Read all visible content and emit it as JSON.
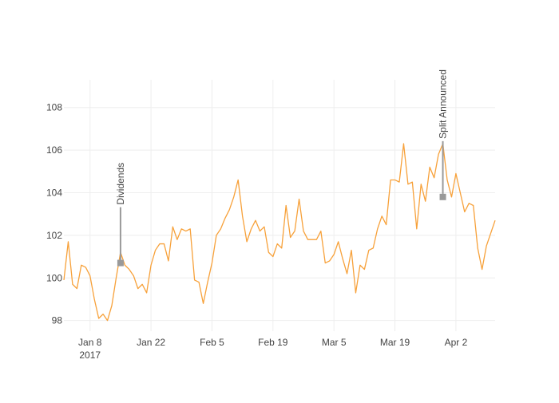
{
  "chart_data": {
    "type": "line",
    "title": "",
    "xlabel": "",
    "ylabel": "",
    "ylim": [
      97.5,
      109.3
    ],
    "xlim": [
      "2017-01-03",
      "2017-04-12"
    ],
    "grid": true,
    "y_ticks": [
      98,
      100,
      102,
      104,
      106,
      108
    ],
    "x_ticks": [
      {
        "date": "2017-01-09",
        "label": "Jan 8",
        "sublabel": "2017"
      },
      {
        "date": "2017-01-23",
        "label": "Jan 22",
        "sublabel": ""
      },
      {
        "date": "2017-02-06",
        "label": "Feb 5",
        "sublabel": ""
      },
      {
        "date": "2017-02-20",
        "label": "Feb 19",
        "sublabel": ""
      },
      {
        "date": "2017-03-06",
        "label": "Mar 5",
        "sublabel": ""
      },
      {
        "date": "2017-03-20",
        "label": "Mar 19",
        "sublabel": ""
      },
      {
        "date": "2017-04-03",
        "label": "Apr 2",
        "sublabel": ""
      }
    ],
    "series": [
      {
        "color": "#f7a13a",
        "x": [
          "2017-01-03",
          "2017-01-04",
          "2017-01-05",
          "2017-01-06",
          "2017-01-07",
          "2017-01-08",
          "2017-01-09",
          "2017-01-10",
          "2017-01-11",
          "2017-01-12",
          "2017-01-13",
          "2017-01-14",
          "2017-01-15",
          "2017-01-16",
          "2017-01-17",
          "2017-01-18",
          "2017-01-19",
          "2017-01-20",
          "2017-01-21",
          "2017-01-22",
          "2017-01-23",
          "2017-01-24",
          "2017-01-25",
          "2017-01-26",
          "2017-01-27",
          "2017-01-28",
          "2017-01-29",
          "2017-01-30",
          "2017-01-31",
          "2017-02-01",
          "2017-02-02",
          "2017-02-03",
          "2017-02-04",
          "2017-02-05",
          "2017-02-06",
          "2017-02-07",
          "2017-02-08",
          "2017-02-09",
          "2017-02-10",
          "2017-02-11",
          "2017-02-12",
          "2017-02-13",
          "2017-02-14",
          "2017-02-15",
          "2017-02-16",
          "2017-02-17",
          "2017-02-18",
          "2017-02-19",
          "2017-02-20",
          "2017-02-21",
          "2017-02-22",
          "2017-02-23",
          "2017-02-24",
          "2017-02-25",
          "2017-02-26",
          "2017-02-27",
          "2017-02-28",
          "2017-03-01",
          "2017-03-02",
          "2017-03-03",
          "2017-03-04",
          "2017-03-05",
          "2017-03-06",
          "2017-03-07",
          "2017-03-08",
          "2017-03-09",
          "2017-03-10",
          "2017-03-11",
          "2017-03-12",
          "2017-03-13",
          "2017-03-14",
          "2017-03-15",
          "2017-03-16",
          "2017-03-17",
          "2017-03-18",
          "2017-03-19",
          "2017-03-20",
          "2017-03-21",
          "2017-03-22",
          "2017-03-23",
          "2017-03-24",
          "2017-03-25",
          "2017-03-26",
          "2017-03-27",
          "2017-03-28",
          "2017-03-29",
          "2017-03-30",
          "2017-03-31",
          "2017-04-01",
          "2017-04-02",
          "2017-04-03",
          "2017-04-04",
          "2017-04-05",
          "2017-04-06",
          "2017-04-07",
          "2017-04-08",
          "2017-04-09",
          "2017-04-10",
          "2017-04-11",
          "2017-04-12"
        ],
        "y": [
          99.9,
          101.7,
          99.7,
          99.5,
          100.6,
          100.5,
          100.1,
          99.0,
          98.1,
          98.3,
          98.0,
          98.7,
          100.0,
          101.2,
          100.6,
          100.4,
          100.1,
          99.5,
          99.7,
          99.3,
          100.6,
          101.3,
          101.6,
          101.6,
          100.8,
          102.4,
          101.8,
          102.3,
          102.2,
          102.3,
          99.9,
          99.8,
          98.8,
          99.8,
          100.7,
          102.0,
          102.3,
          102.8,
          103.2,
          103.8,
          104.6,
          102.9,
          101.7,
          102.3,
          102.7,
          102.2,
          102.4,
          101.2,
          101.0,
          101.6,
          101.4,
          103.4,
          101.9,
          102.2,
          103.7,
          102.2,
          101.8,
          101.8,
          101.8,
          102.2,
          100.7,
          100.8,
          101.1,
          101.7,
          100.9,
          100.2,
          101.3,
          99.3,
          100.6,
          100.4,
          101.3,
          101.4,
          102.3,
          102.9,
          102.5,
          104.6,
          104.6,
          104.5,
          106.3,
          104.4,
          104.5,
          102.3,
          104.4,
          103.6,
          105.2,
          104.7,
          105.8,
          106.3,
          104.6,
          103.8,
          104.9,
          104.0,
          103.1,
          103.5,
          103.4,
          101.4,
          100.4,
          101.5,
          102.1,
          102.7
        ]
      }
    ],
    "annotations": [
      {
        "text": "Dividends",
        "date": "2017-01-16",
        "y": 100.7
      },
      {
        "text": "Split Announced",
        "date": "2017-03-31",
        "y": 103.8
      }
    ]
  }
}
